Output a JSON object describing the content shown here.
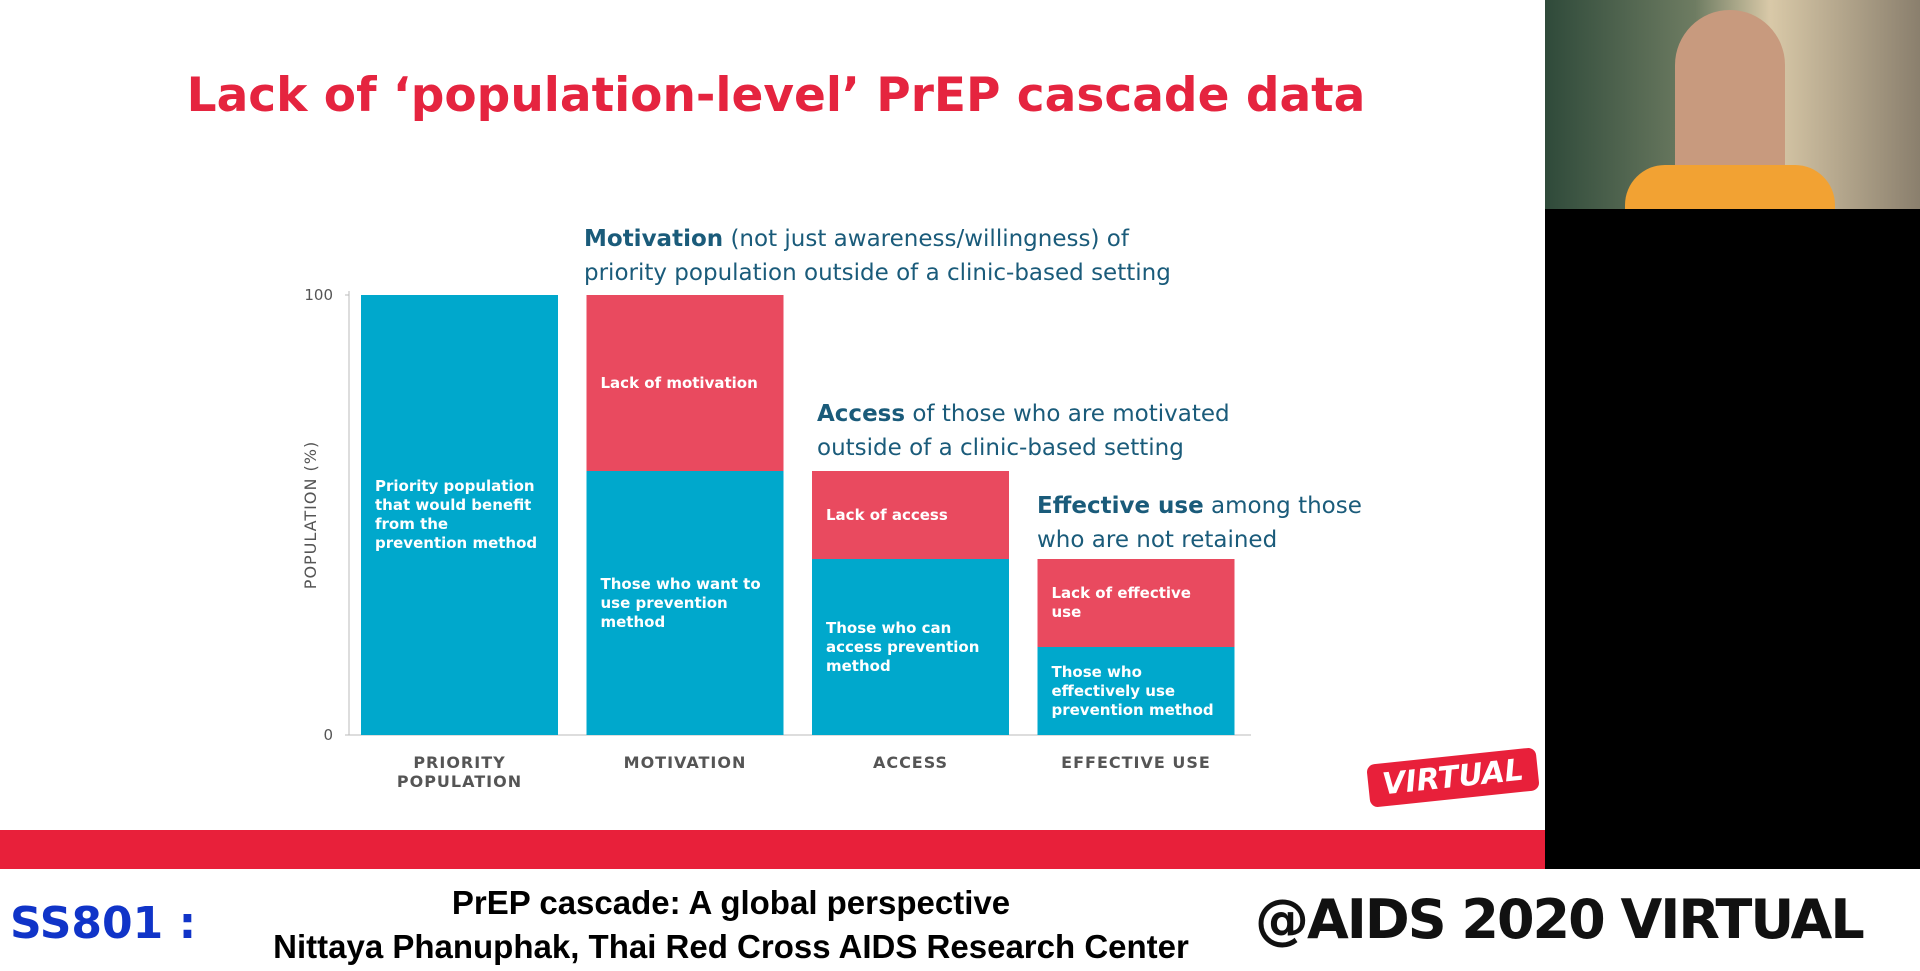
{
  "chart_data": {
    "type": "stacked_bar",
    "title": "Lack of ‘population-level’ PrEP cascade data",
    "ylabel": "POPULATION (%)",
    "categories": [
      "PRIORITY POPULATION",
      "MOTIVATION",
      "ACCESS",
      "EFFECTIVE USE"
    ],
    "series": [
      {
        "color": "#00a8cc",
        "values": [
          100,
          60,
          40,
          20
        ],
        "segment_labels": [
          "Priority population that would benefit from the prevention method",
          "Those who want to use prevention method",
          "Those who can access prevention method",
          "Those who effectively use prevention method"
        ]
      },
      {
        "color": "#e94a5f",
        "values": [
          null,
          40,
          20,
          20
        ],
        "segment_labels": [
          null,
          "Lack of motivation",
          "Lack of access",
          "Lack of effective use"
        ]
      }
    ],
    "ylim": [
      0,
      100
    ],
    "yticks": [
      0,
      100
    ],
    "annotations": [
      {
        "bold": "Motivation",
        "lines": [
          " (not just awareness/willingness) of",
          "priority population outside of a clinic-based setting"
        ]
      },
      {
        "bold": "Access",
        "lines": [
          " of those who are motivated",
          "outside of a clinic-based setting"
        ]
      },
      {
        "bold": "Effective use",
        "lines": [
          " among those",
          "who are not retained"
        ]
      }
    ]
  },
  "logo": "VIRTUAL",
  "caption": {
    "session": "SS801 :",
    "title": "PrEP cascade: A global perspective",
    "speaker": "Nittaya Phanuphak, Thai Red Cross AIDS Research Center",
    "brand": "@AIDS 2020 VIRTUAL"
  }
}
